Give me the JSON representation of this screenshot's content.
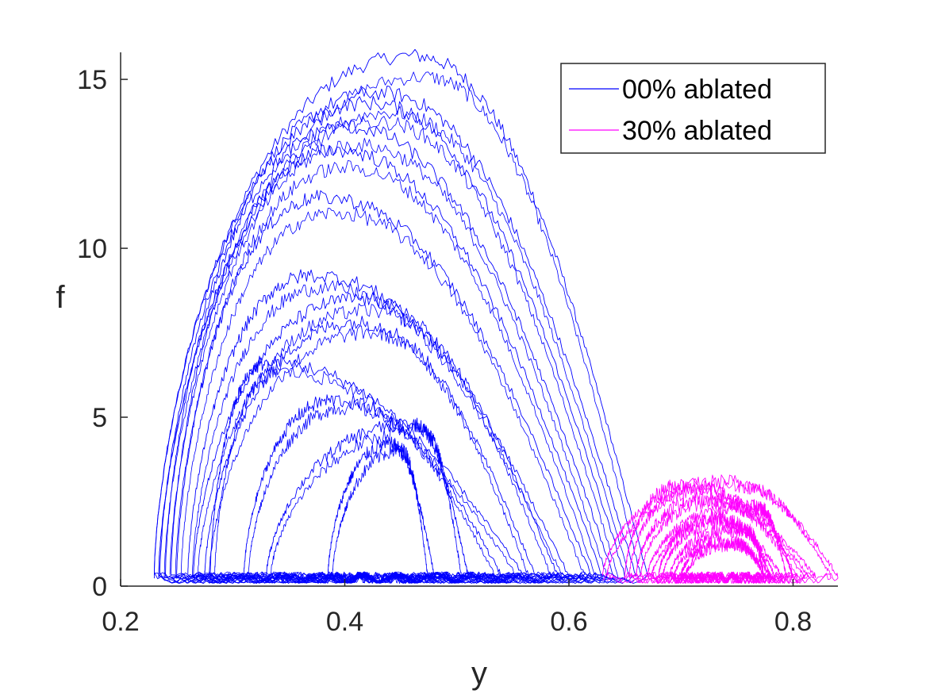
{
  "chart_data": {
    "type": "line",
    "title": "",
    "xlabel": "y",
    "ylabel": "f",
    "xlim": [
      0.2,
      0.84
    ],
    "ylim": [
      0,
      15.8
    ],
    "x_ticks": [
      0.2,
      0.4,
      0.6,
      0.8
    ],
    "x_tick_labels": [
      "0.2",
      "0.4",
      "0.6",
      "0.8"
    ],
    "y_ticks": [
      0,
      5,
      10,
      15
    ],
    "y_tick_labels": [
      "0",
      "5",
      "10",
      "15"
    ],
    "grid": false,
    "legend_position": "top-right",
    "series": [
      {
        "name": "00% ablated",
        "color": "#0000ff",
        "note": "many noisy closed loops (trajectories); approximate envelopes listed",
        "loops": [
          {
            "x_left": 0.23,
            "x_right": 0.67,
            "peak_x": 0.46,
            "peak_f": 15.7
          },
          {
            "x_left": 0.23,
            "x_right": 0.66,
            "peak_x": 0.43,
            "peak_f": 14.6
          },
          {
            "x_left": 0.235,
            "x_right": 0.65,
            "peak_x": 0.42,
            "peak_f": 14.3
          },
          {
            "x_left": 0.24,
            "x_right": 0.64,
            "peak_x": 0.4,
            "peak_f": 13.6
          },
          {
            "x_left": 0.245,
            "x_right": 0.63,
            "peak_x": 0.39,
            "peak_f": 12.9
          },
          {
            "x_left": 0.25,
            "x_right": 0.62,
            "peak_x": 0.38,
            "peak_f": 11.5
          },
          {
            "x_left": 0.26,
            "x_right": 0.6,
            "peak_x": 0.37,
            "peak_f": 9.2
          },
          {
            "x_left": 0.265,
            "x_right": 0.59,
            "peak_x": 0.41,
            "peak_f": 8.5
          },
          {
            "x_left": 0.275,
            "x_right": 0.57,
            "peak_x": 0.41,
            "peak_f": 7.8
          },
          {
            "x_left": 0.28,
            "x_right": 0.56,
            "peak_x": 0.33,
            "peak_f": 6.6
          },
          {
            "x_left": 0.31,
            "x_right": 0.54,
            "peak_x": 0.39,
            "peak_f": 5.5
          },
          {
            "x_left": 0.33,
            "x_right": 0.51,
            "peak_x": 0.46,
            "peak_f": 4.8
          },
          {
            "x_left": 0.385,
            "x_right": 0.48,
            "peak_x": 0.44,
            "peak_f": 4.2
          }
        ]
      },
      {
        "name": "30% ablated",
        "color": "#ff00ff",
        "note": "many noisy small loops; approximate envelopes listed",
        "loops": [
          {
            "x_left": 0.63,
            "x_right": 0.84,
            "peak_x": 0.74,
            "peak_f": 3.1
          },
          {
            "x_left": 0.65,
            "x_right": 0.82,
            "peak_x": 0.7,
            "peak_f": 3.0
          },
          {
            "x_left": 0.66,
            "x_right": 0.81,
            "peak_x": 0.72,
            "peak_f": 2.6
          },
          {
            "x_left": 0.67,
            "x_right": 0.8,
            "peak_x": 0.76,
            "peak_f": 2.4
          },
          {
            "x_left": 0.68,
            "x_right": 0.79,
            "peak_x": 0.73,
            "peak_f": 2.0
          },
          {
            "x_left": 0.69,
            "x_right": 0.78,
            "peak_x": 0.75,
            "peak_f": 1.7
          },
          {
            "x_left": 0.7,
            "x_right": 0.78,
            "peak_x": 0.74,
            "peak_f": 1.3
          }
        ]
      }
    ]
  }
}
